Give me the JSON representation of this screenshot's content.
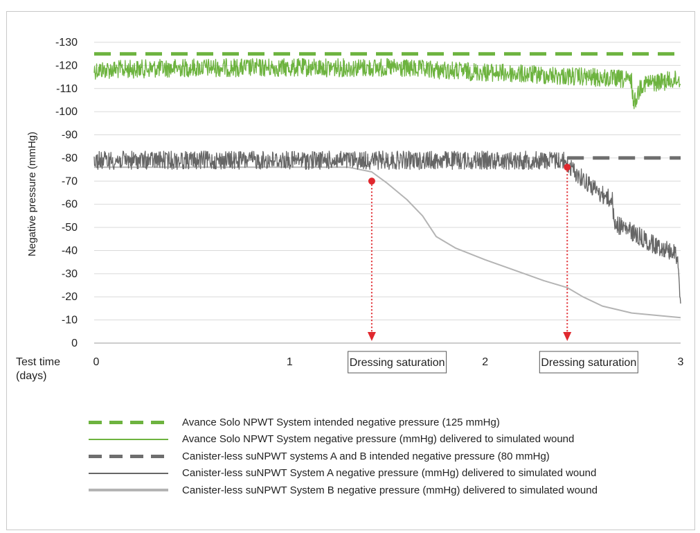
{
  "chart_data": {
    "type": "line",
    "ylabel": "Negative pressure (mmHg)",
    "xlabel_lines": [
      "Test time",
      "(days)"
    ],
    "xlim": [
      0,
      3
    ],
    "ylim": [
      0,
      -130
    ],
    "x_ticks": [
      0,
      1,
      2,
      3
    ],
    "x_tick_labels": [
      "0",
      "1",
      "2",
      "3"
    ],
    "y_ticks": [
      0,
      -10,
      -20,
      -30,
      -40,
      -50,
      -60,
      -70,
      -80,
      -90,
      -100,
      -110,
      -120,
      -130
    ],
    "y_tick_labels": [
      "0",
      "-10",
      "-20",
      "-30",
      "-40",
      "-50",
      "-60",
      "-70",
      "-80",
      "-90",
      "-100",
      "-110",
      "-120",
      "-130"
    ],
    "grid": "horizontal",
    "legend_position": "bottom",
    "series": [
      {
        "name": "Avance Solo NPWT System intended negative pressure (125 mmHg)",
        "style": "dashed",
        "color": "#6db33f",
        "x": [
          0,
          3
        ],
        "y": [
          -125,
          -125
        ]
      },
      {
        "name": "Avance Solo NPWT System negative pressure (mmHg) delivered to simulated wound",
        "style": "solid-noisy",
        "color": "#6db33f",
        "x": [
          0,
          0.5,
          1.0,
          1.5,
          2.0,
          2.5,
          2.7,
          2.75,
          2.76,
          2.8,
          3.0
        ],
        "y": [
          -118,
          -119,
          -119,
          -119,
          -117,
          -115,
          -114,
          -113,
          -103,
          -112,
          -114
        ]
      },
      {
        "name": "Canister-less suNPWT systems A and B intended negative pressure (80 mmHg)",
        "style": "dashed",
        "color": "#6e6e6e",
        "x": [
          2.42,
          3.0
        ],
        "y": [
          -80,
          -80
        ]
      },
      {
        "name": "Canister-less suNPWT System A negative pressure (mmHg) delivered to simulated wound",
        "style": "solid-noisy",
        "color": "#666666",
        "x": [
          0,
          0.5,
          1.0,
          1.5,
          2.0,
          2.4,
          2.42,
          2.5,
          2.6,
          2.65,
          2.66,
          2.75,
          2.85,
          2.95,
          2.98,
          2.99,
          3.0
        ],
        "y": [
          -79,
          -79,
          -79,
          -79,
          -79,
          -79,
          -77,
          -71,
          -64,
          -62,
          -52,
          -48,
          -43,
          -40,
          -38,
          -32,
          -17
        ]
      },
      {
        "name": "Canister-less suNPWT System B negative pressure (mmHg) delivered to simulated wound",
        "style": "solid",
        "color": "#b4b4b4",
        "x": [
          0,
          0.5,
          1.0,
          1.3,
          1.42,
          1.5,
          1.6,
          1.68,
          1.75,
          1.85,
          2.0,
          2.2,
          2.3,
          2.42,
          2.5,
          2.6,
          2.75,
          3.0
        ],
        "y": [
          -76,
          -76,
          -76,
          -76,
          -74,
          -69,
          -62,
          -55,
          -46,
          -41,
          -36,
          -30,
          -27,
          -24,
          -20,
          -16,
          -13,
          -11
        ]
      }
    ],
    "annotations": [
      {
        "text": "Dressing saturation",
        "x": 1.42,
        "y": -70,
        "box_center_x": 1.55
      },
      {
        "text": "Dressing saturation",
        "x": 2.42,
        "y": -76,
        "box_center_x": 2.53
      }
    ]
  }
}
